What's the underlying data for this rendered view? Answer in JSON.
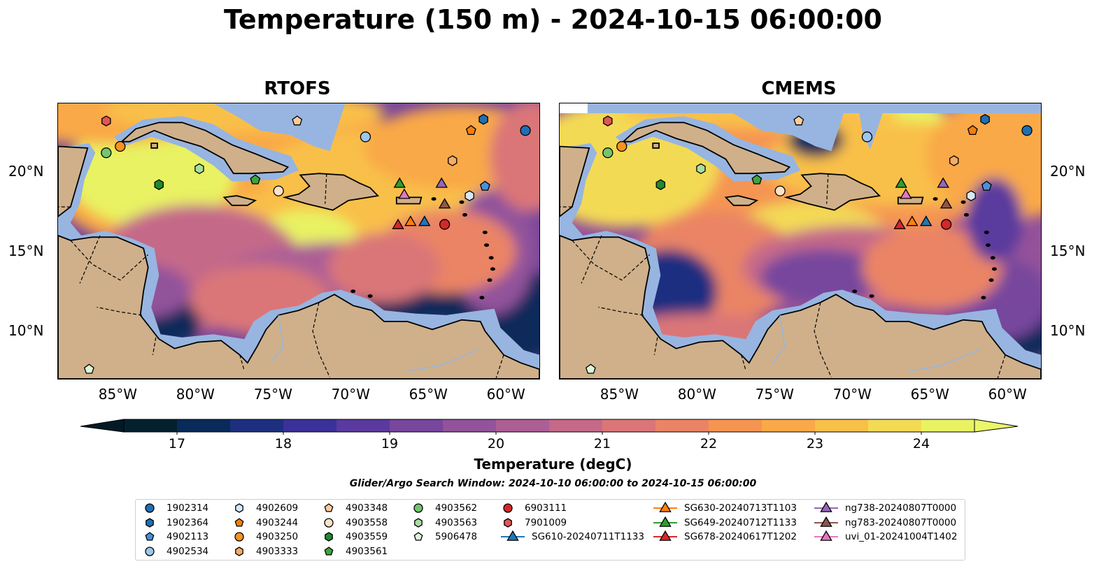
{
  "title": "Temperature (150 m) - 2024-10-15 06:00:00",
  "panels": [
    {
      "name": "RTOFS",
      "variant": "rtofs"
    },
    {
      "name": "CMEMS",
      "variant": "cmems"
    }
  ],
  "axes": {
    "lon_ticks": [
      "85°W",
      "80°W",
      "75°W",
      "70°W",
      "65°W",
      "60°W"
    ],
    "lat_ticks": [
      "20°N",
      "15°N",
      "10°N"
    ],
    "lon_range": [
      -89,
      -58
    ],
    "lat_range": [
      7,
      24.3
    ]
  },
  "colorbar": {
    "label": "Temperature (degC)",
    "ticks": [
      "17",
      "18",
      "19",
      "20",
      "21",
      "22",
      "23",
      "24"
    ],
    "range": [
      16.5,
      24.5
    ],
    "colormap": "thermal",
    "colors": [
      "#04202f",
      "#0a2a5a",
      "#1e2f80",
      "#3a3199",
      "#5a3a9e",
      "#77469d",
      "#92539b",
      "#ac5e95",
      "#c56989",
      "#da7678",
      "#ea8465",
      "#f59552",
      "#f9a947",
      "#f9c049",
      "#f3da55",
      "#e8f262"
    ]
  },
  "search_window": "Glider/Argo Search Window: 2024-10-10 06:00:00 to 2024-10-15 06:00:00",
  "colors": {
    "land": "#cfb08a",
    "shelf": "#97b5e0",
    "coast": "#000000"
  },
  "legend": [
    {
      "label": "1902314",
      "marker": "circle",
      "color": "#1f6fb4"
    },
    {
      "label": "1902364",
      "marker": "hexagon",
      "color": "#1f6fb4"
    },
    {
      "label": "4902113",
      "marker": "pentagon",
      "color": "#4a90d9"
    },
    {
      "label": "4902534",
      "marker": "circle",
      "color": "#9ec6ea"
    },
    {
      "label": "4902609",
      "marker": "hexagon",
      "color": "#d6e8f7"
    },
    {
      "label": "4903244",
      "marker": "pentagon",
      "color": "#f07f11"
    },
    {
      "label": "4903250",
      "marker": "circle",
      "color": "#f7931e"
    },
    {
      "label": "4903333",
      "marker": "hexagon",
      "color": "#f9ab62"
    },
    {
      "label": "4903348",
      "marker": "pentagon",
      "color": "#fbcd9c"
    },
    {
      "label": "4903558",
      "marker": "circle",
      "color": "#fde2c6"
    },
    {
      "label": "4903559",
      "marker": "hexagon",
      "color": "#20892d"
    },
    {
      "label": "4903561",
      "marker": "pentagon",
      "color": "#3fa43d"
    },
    {
      "label": "4903562",
      "marker": "circle",
      "color": "#73c66b"
    },
    {
      "label": "4903563",
      "marker": "hexagon",
      "color": "#a8dea0"
    },
    {
      "label": "5906478",
      "marker": "pentagon",
      "color": "#dff4d8"
    },
    {
      "label": "6903111",
      "marker": "circle",
      "color": "#d62727"
    },
    {
      "label": "7901009",
      "marker": "hexagon",
      "color": "#e05555"
    },
    {
      "label": "SG610-20240711T1133",
      "marker": "triangle",
      "color": "#1f77b4"
    },
    {
      "label": "SG630-20240713T1103",
      "marker": "triangle",
      "color": "#ff7f0e"
    },
    {
      "label": "SG649-20240712T1133",
      "marker": "triangle",
      "color": "#2ca02c"
    },
    {
      "label": "SG678-20240617T1202",
      "marker": "triangle",
      "color": "#d62728"
    },
    {
      "label": "ng738-20240807T0000",
      "marker": "triangle",
      "color": "#9467bd"
    },
    {
      "label": "ng783-20240807T0000",
      "marker": "triangle",
      "color": "#8c564b"
    },
    {
      "label": "uvi_01-20241004T1402",
      "marker": "triangle",
      "color": "#e377c2"
    }
  ],
  "floats": [
    {
      "marker": "hexagon",
      "color": "#e05555",
      "lon": -85.9,
      "lat": 23.2
    },
    {
      "marker": "circle",
      "color": "#73c66b",
      "lon": -85.9,
      "lat": 21.2
    },
    {
      "marker": "circle",
      "color": "#f7931e",
      "lon": -85.0,
      "lat": 21.6
    },
    {
      "marker": "hexagon",
      "color": "#a8dea0",
      "lon": -79.9,
      "lat": 20.2
    },
    {
      "marker": "hexagon",
      "color": "#20892d",
      "lon": -82.5,
      "lat": 19.2
    },
    {
      "marker": "pentagon",
      "color": "#3fa43d",
      "lon": -76.3,
      "lat": 19.5
    },
    {
      "marker": "circle",
      "color": "#fde2c6",
      "lon": -74.8,
      "lat": 18.8
    },
    {
      "marker": "pentagon",
      "color": "#fbcd9c",
      "lon": -73.6,
      "lat": 23.2
    },
    {
      "marker": "circle",
      "color": "#9ec6ea",
      "lon": -69.2,
      "lat": 22.2
    },
    {
      "marker": "pentagon",
      "color": "#f07f11",
      "lon": -62.4,
      "lat": 22.6
    },
    {
      "marker": "hexagon",
      "color": "#1f6fb4",
      "lon": -61.6,
      "lat": 23.3
    },
    {
      "marker": "circle",
      "color": "#1f6fb4",
      "lon": -58.9,
      "lat": 22.6
    },
    {
      "marker": "hexagon",
      "color": "#f9ab62",
      "lon": -63.6,
      "lat": 20.7
    },
    {
      "marker": "hexagon",
      "color": "#d6e8f7",
      "lon": -62.5,
      "lat": 18.5
    },
    {
      "marker": "pentagon",
      "color": "#4a90d9",
      "lon": -61.5,
      "lat": 19.1
    },
    {
      "marker": "circle",
      "color": "#d62727",
      "lon": -64.1,
      "lat": 16.7
    },
    {
      "marker": "pentagon",
      "color": "#dff4d8",
      "lon": -87.0,
      "lat": 7.6
    },
    {
      "marker": "triangle",
      "color": "#2ca02c",
      "lon": -67.0,
      "lat": 19.3
    },
    {
      "marker": "triangle",
      "color": "#9467bd",
      "lon": -64.3,
      "lat": 19.3
    },
    {
      "marker": "triangle",
      "color": "#e377c2",
      "lon": -66.7,
      "lat": 18.6
    },
    {
      "marker": "triangle",
      "color": "#8c564b",
      "lon": -64.1,
      "lat": 18.0
    },
    {
      "marker": "triangle",
      "color": "#d62728",
      "lon": -67.1,
      "lat": 16.7
    },
    {
      "marker": "triangle",
      "color": "#ff7f0e",
      "lon": -66.3,
      "lat": 16.9
    },
    {
      "marker": "triangle",
      "color": "#1f77b4",
      "lon": -65.4,
      "lat": 16.9
    }
  ]
}
